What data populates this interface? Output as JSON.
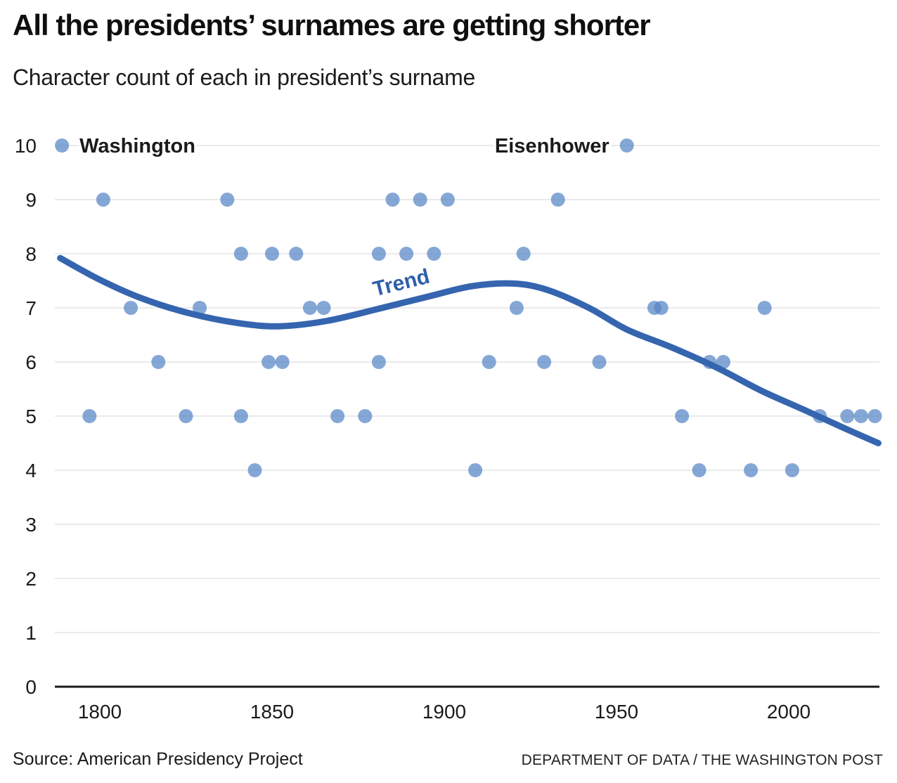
{
  "header": {
    "title": "All the presidents’ surnames are getting shorter",
    "subtitle": "Character count of each in president’s surname"
  },
  "footer": {
    "source": "Source: American Presidency Project",
    "credit": "DEPARTMENT OF DATA / THE WASHINGTON POST"
  },
  "chart_data": {
    "type": "scatter",
    "title": "All the presidents’ surnames are getting shorter",
    "subtitle": "Character count of each in president’s surname",
    "xlabel": "",
    "ylabel": "",
    "xlim": [
      1786,
      2028
    ],
    "ylim": [
      0,
      10
    ],
    "grid": true,
    "legend_position": "none",
    "x_ticks": [
      1800,
      1850,
      1900,
      1950,
      2000
    ],
    "y_ticks": [
      0,
      1,
      2,
      3,
      4,
      5,
      6,
      7,
      8,
      9,
      10
    ],
    "points_desc": "each point = [inauguration year, characters in president's surname]",
    "points": [
      [
        1789,
        10
      ],
      [
        1797,
        5
      ],
      [
        1801,
        9
      ],
      [
        1809,
        7
      ],
      [
        1817,
        6
      ],
      [
        1825,
        5
      ],
      [
        1829,
        7
      ],
      [
        1837,
        9
      ],
      [
        1841,
        8
      ],
      [
        1841,
        5
      ],
      [
        1845,
        4
      ],
      [
        1849,
        6
      ],
      [
        1850,
        8
      ],
      [
        1853,
        6
      ],
      [
        1857,
        8
      ],
      [
        1861,
        7
      ],
      [
        1865,
        7
      ],
      [
        1869,
        5
      ],
      [
        1877,
        5
      ],
      [
        1881,
        8
      ],
      [
        1881,
        6
      ],
      [
        1885,
        9
      ],
      [
        1889,
        8
      ],
      [
        1893,
        9
      ],
      [
        1897,
        8
      ],
      [
        1901,
        9
      ],
      [
        1909,
        4
      ],
      [
        1913,
        6
      ],
      [
        1921,
        7
      ],
      [
        1923,
        8
      ],
      [
        1929,
        6
      ],
      [
        1933,
        9
      ],
      [
        1945,
        6
      ],
      [
        1953,
        10
      ],
      [
        1961,
        7
      ],
      [
        1963,
        7
      ],
      [
        1969,
        5
      ],
      [
        1974,
        4
      ],
      [
        1977,
        6
      ],
      [
        1981,
        6
      ],
      [
        1989,
        4
      ],
      [
        1993,
        7
      ],
      [
        2001,
        4
      ],
      [
        2009,
        5
      ],
      [
        2017,
        5
      ],
      [
        2021,
        5
      ],
      [
        2025,
        5
      ]
    ],
    "trend": {
      "points": [
        [
          1788.5,
          7.92
        ],
        [
          1800,
          7.52
        ],
        [
          1812,
          7.18
        ],
        [
          1826,
          6.9
        ],
        [
          1840,
          6.72
        ],
        [
          1852,
          6.66
        ],
        [
          1866,
          6.76
        ],
        [
          1882,
          7.0
        ],
        [
          1896,
          7.22
        ],
        [
          1908,
          7.4
        ],
        [
          1920,
          7.45
        ],
        [
          1930,
          7.33
        ],
        [
          1942,
          7.0
        ],
        [
          1953,
          6.6
        ],
        [
          1966,
          6.27
        ],
        [
          1979,
          5.9
        ],
        [
          1992,
          5.47
        ],
        [
          2005,
          5.1
        ],
        [
          2016,
          4.78
        ],
        [
          2026,
          4.5
        ]
      ]
    },
    "annotations": [
      {
        "id": "washington",
        "label": "Washington",
        "year": 1789,
        "value": 10,
        "side": "right"
      },
      {
        "id": "eisenhower",
        "label": "Eisenhower",
        "year": 1953,
        "value": 10,
        "side": "left"
      },
      {
        "id": "trend",
        "label": "Trend",
        "year": 1888,
        "value": 7.47,
        "rotate": -14
      }
    ],
    "colors": {
      "dot": "#5585c5",
      "trend": "#3565af",
      "trend_label": "#2e5fa9",
      "grid": "#e4e4e4",
      "axis": "#1a1a1a",
      "text": "#1a1a1a"
    }
  }
}
